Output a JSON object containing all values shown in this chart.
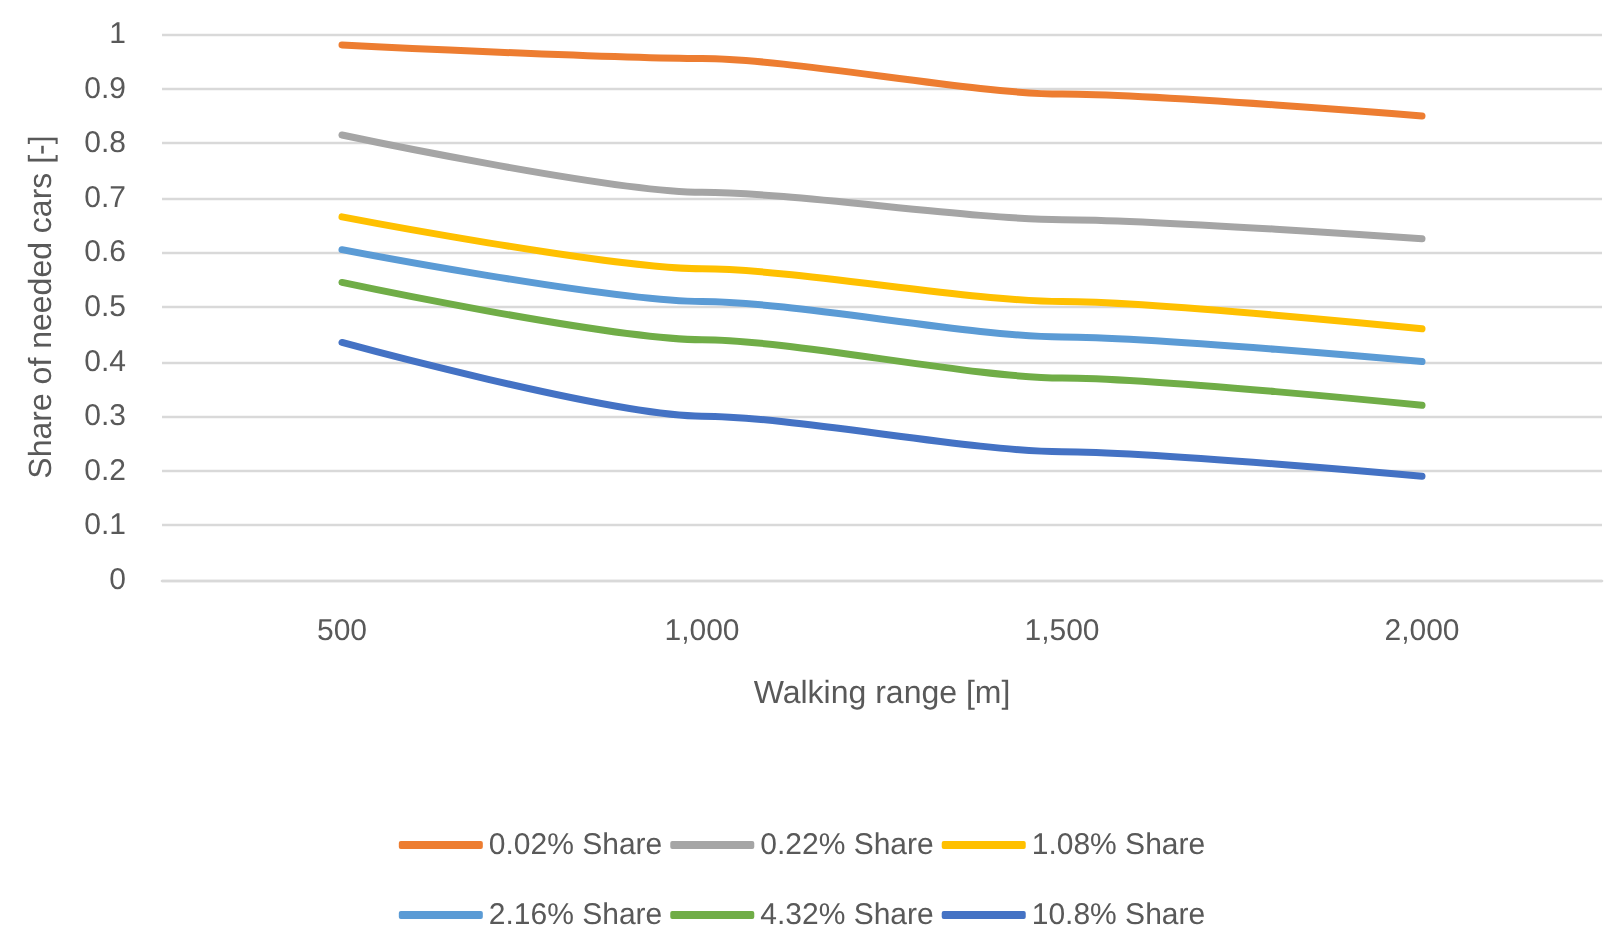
{
  "chart_data": {
    "type": "line",
    "xlabel": "Walking range [m]",
    "ylabel": "Share of needed cars [-]",
    "categories": [
      "500",
      "1,000",
      "1,500",
      "2,000"
    ],
    "series": [
      {
        "name": "0.02% Share",
        "color": "#ed7d31",
        "values": [
          0.98,
          0.955,
          0.89,
          0.85
        ]
      },
      {
        "name": "0.22% Share",
        "color": "#a5a5a5",
        "values": [
          0.815,
          0.71,
          0.66,
          0.625
        ]
      },
      {
        "name": "1.08% Share",
        "color": "#ffc000",
        "values": [
          0.665,
          0.57,
          0.51,
          0.46
        ]
      },
      {
        "name": "2.16% Share",
        "color": "#5b9bd5",
        "values": [
          0.605,
          0.51,
          0.445,
          0.4
        ]
      },
      {
        "name": "4.32% Share",
        "color": "#70ad47",
        "values": [
          0.545,
          0.44,
          0.37,
          0.32
        ]
      },
      {
        "name": "10.8% Share",
        "color": "#4472c4",
        "values": [
          0.435,
          0.3,
          0.235,
          0.19
        ]
      }
    ],
    "ylim": [
      0,
      1
    ],
    "yticks": [
      0,
      0.1,
      0.2,
      0.3,
      0.4,
      0.5,
      0.6,
      0.7,
      0.8,
      0.9,
      1
    ],
    "grid": "y",
    "legend": "bottom",
    "marker": "none",
    "line_style": "solid"
  }
}
